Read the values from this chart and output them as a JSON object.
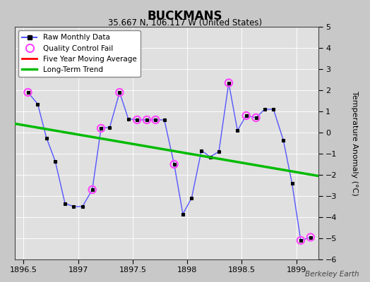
{
  "title": "BUCKMANS",
  "subtitle": "35.667 N, 106.117 W (United States)",
  "watermark": "Berkeley Earth",
  "xlim": [
    1896.42,
    1899.2
  ],
  "ylim": [
    -6,
    5
  ],
  "yticks": [
    -6,
    -5,
    -4,
    -3,
    -2,
    -1,
    0,
    1,
    2,
    3,
    4,
    5
  ],
  "xticks": [
    1896.5,
    1897.0,
    1897.5,
    1898.0,
    1898.5,
    1899.0
  ],
  "ylabel": "Temperature Anomaly (°C)",
  "background_color": "#c8c8c8",
  "plot_bg_color": "#e0e0e0",
  "raw_x": [
    1896.54,
    1896.63,
    1896.71,
    1896.79,
    1896.88,
    1896.96,
    1897.04,
    1897.13,
    1897.21,
    1897.29,
    1897.38,
    1897.46,
    1897.54,
    1897.63,
    1897.71,
    1897.79,
    1897.88,
    1897.96,
    1898.04,
    1898.13,
    1898.21,
    1898.29,
    1898.38,
    1898.46,
    1898.54,
    1898.63,
    1898.71,
    1898.79,
    1898.88,
    1898.96,
    1899.04,
    1899.13
  ],
  "raw_y": [
    1.9,
    1.35,
    -0.25,
    -1.35,
    -3.35,
    -3.5,
    -3.5,
    -2.7,
    0.2,
    0.25,
    1.9,
    0.65,
    0.6,
    0.6,
    0.6,
    0.6,
    -1.5,
    -3.85,
    -3.1,
    -0.85,
    -1.15,
    -0.9,
    2.35,
    0.1,
    0.8,
    0.7,
    1.1,
    1.1,
    -0.35,
    -2.4,
    -5.1,
    -4.95
  ],
  "qc_fail_x": [
    1896.54,
    1897.13,
    1897.21,
    1897.38,
    1897.54,
    1897.63,
    1897.71,
    1897.88,
    1898.38,
    1898.54,
    1898.63,
    1899.04,
    1899.13
  ],
  "qc_fail_y": [
    1.9,
    -2.7,
    0.2,
    1.9,
    0.6,
    0.6,
    0.6,
    -1.5,
    2.35,
    0.8,
    0.7,
    -5.1,
    -4.95
  ],
  "trend_x": [
    1896.42,
    1899.2
  ],
  "trend_y": [
    0.42,
    -2.05
  ],
  "raw_color": "#5555ff",
  "raw_marker_color": "#000000",
  "qc_color": "#ff44ff",
  "trend_color": "#00bb00",
  "ma_color": "#ff0000",
  "grid_color": "#ffffff",
  "grid_alpha": 0.9
}
